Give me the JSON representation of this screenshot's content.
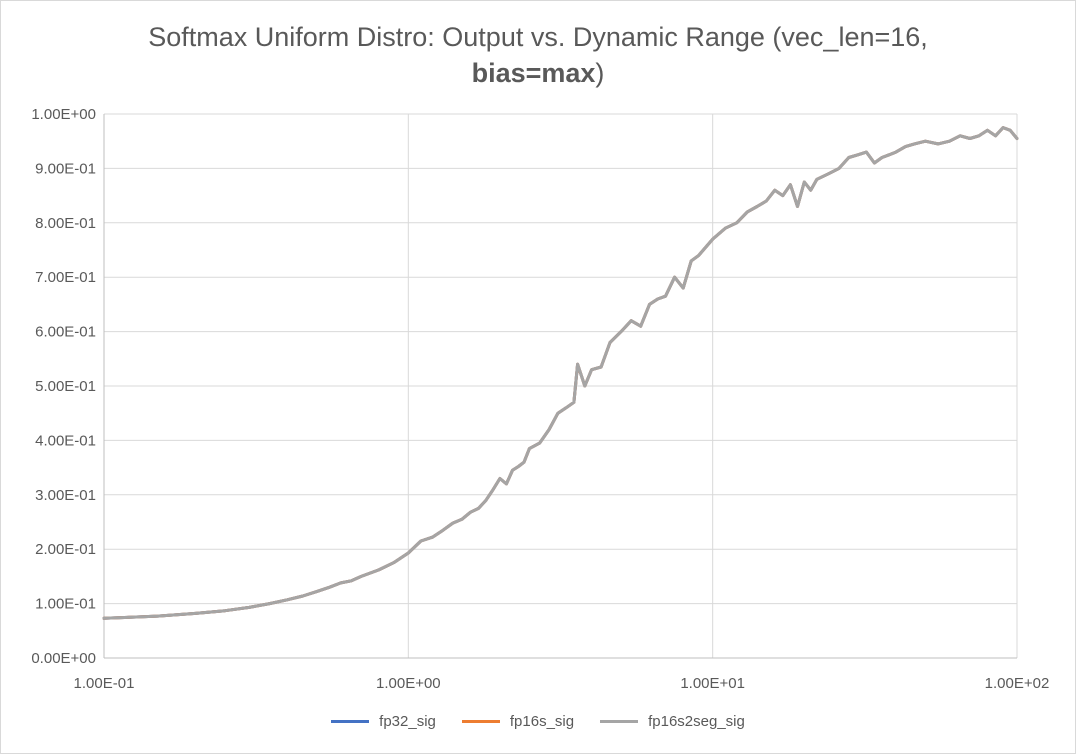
{
  "chart_data": {
    "type": "line",
    "title_line1": "Softmax Uniform Distro: Output vs. Dynamic Range (vec_len=16,",
    "title_line2_bold": "bias=max",
    "title_line2_rest": ")",
    "x_scale": "log",
    "xlim": [
      0.1,
      100
    ],
    "ylim": [
      0,
      1
    ],
    "x_ticks": [
      0.1,
      1,
      10,
      100
    ],
    "x_tick_labels": [
      "1.00E-01",
      "1.00E+00",
      "1.00E+01",
      "1.00E+02"
    ],
    "y_ticks": [
      0,
      0.1,
      0.2,
      0.3,
      0.4,
      0.5,
      0.6,
      0.7,
      0.8,
      0.9,
      1.0
    ],
    "y_tick_labels": [
      "0.00E+00",
      "1.00E-01",
      "2.00E-01",
      "3.00E-01",
      "4.00E-01",
      "5.00E-01",
      "6.00E-01",
      "7.00E-01",
      "8.00E-01",
      "9.00E-01",
      "1.00E+00"
    ],
    "grid": true,
    "legend_position": "bottom",
    "series": [
      {
        "name": "fp32_sig",
        "color": "#4472c4"
      },
      {
        "name": "fp16s_sig",
        "color": "#ed7d31"
      },
      {
        "name": "fp16s2seg_sig",
        "color": "#a5a5a5"
      }
    ],
    "x": [
      0.1,
      0.15,
      0.2,
      0.25,
      0.3,
      0.35,
      0.4,
      0.45,
      0.5,
      0.55,
      0.6,
      0.65,
      0.7,
      0.8,
      0.9,
      1.0,
      1.1,
      1.2,
      1.3,
      1.4,
      1.5,
      1.6,
      1.7,
      1.8,
      1.9,
      2.0,
      2.1,
      2.2,
      2.3,
      2.4,
      2.5,
      2.7,
      2.9,
      3.1,
      3.3,
      3.5,
      3.6,
      3.8,
      4.0,
      4.3,
      4.6,
      5.0,
      5.4,
      5.8,
      6.2,
      6.6,
      7.0,
      7.5,
      8.0,
      8.5,
      9.0,
      10.0,
      11.0,
      12.0,
      13.0,
      14.0,
      15.0,
      16.0,
      17.0,
      18.0,
      19.0,
      20.0,
      21.0,
      22.0,
      24.0,
      26.0,
      28.0,
      30.0,
      32.0,
      34.0,
      36.0,
      38.0,
      40.0,
      43.0,
      46.0,
      50.0,
      55.0,
      60.0,
      65.0,
      70.0,
      75.0,
      80.0,
      85.0,
      90.0,
      95.0,
      100.0
    ],
    "fp16s2seg_sig": [
      0.073,
      0.077,
      0.082,
      0.087,
      0.093,
      0.1,
      0.107,
      0.114,
      0.122,
      0.13,
      0.138,
      0.142,
      0.15,
      0.162,
      0.176,
      0.193,
      0.215,
      0.222,
      0.235,
      0.248,
      0.255,
      0.268,
      0.275,
      0.29,
      0.31,
      0.33,
      0.32,
      0.345,
      0.352,
      0.36,
      0.385,
      0.395,
      0.42,
      0.45,
      0.46,
      0.47,
      0.54,
      0.5,
      0.53,
      0.535,
      0.58,
      0.6,
      0.62,
      0.61,
      0.65,
      0.66,
      0.665,
      0.7,
      0.68,
      0.73,
      0.74,
      0.77,
      0.79,
      0.8,
      0.82,
      0.83,
      0.84,
      0.86,
      0.85,
      0.87,
      0.83,
      0.875,
      0.86,
      0.88,
      0.89,
      0.9,
      0.92,
      0.925,
      0.93,
      0.91,
      0.92,
      0.925,
      0.93,
      0.94,
      0.945,
      0.95,
      0.945,
      0.95,
      0.96,
      0.955,
      0.96,
      0.97,
      0.96,
      0.975,
      0.97,
      0.955
    ]
  }
}
